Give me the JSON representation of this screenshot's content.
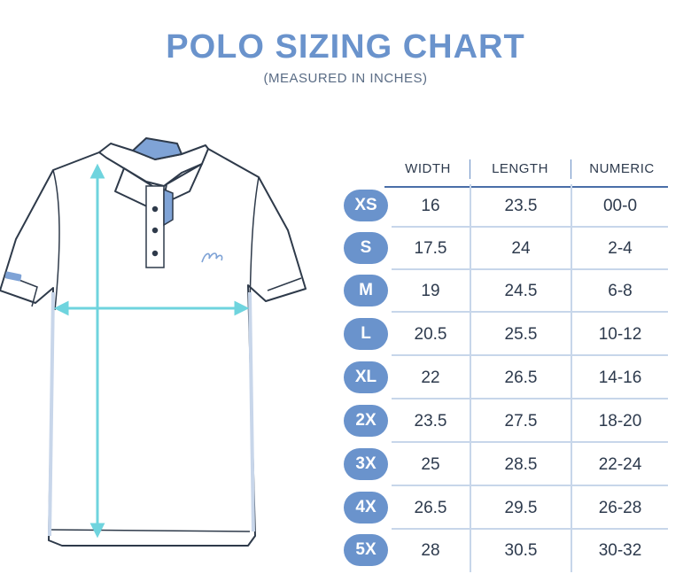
{
  "title": "POLO SIZING CHART",
  "subtitle": "(MEASURED IN INCHES)",
  "colors": {
    "accent": "#6a93cc",
    "text": "#2d3a4d",
    "measure_line": "#6fd4de"
  },
  "columns": [
    "WIDTH",
    "LENGTH",
    "NUMERIC"
  ],
  "rows": [
    {
      "size": "XS",
      "width": "16",
      "length": "23.5",
      "numeric": "00-0"
    },
    {
      "size": "S",
      "width": "17.5",
      "length": "24",
      "numeric": "2-4"
    },
    {
      "size": "M",
      "width": "19",
      "length": "24.5",
      "numeric": "6-8"
    },
    {
      "size": "L",
      "width": "20.5",
      "length": "25.5",
      "numeric": "10-12"
    },
    {
      "size": "XL",
      "width": "22",
      "length": "26.5",
      "numeric": "14-16"
    },
    {
      "size": "2X",
      "width": "23.5",
      "length": "27.5",
      "numeric": "18-20"
    },
    {
      "size": "3X",
      "width": "25",
      "length": "28.5",
      "numeric": "22-24"
    },
    {
      "size": "4X",
      "width": "26.5",
      "length": "29.5",
      "numeric": "26-28"
    },
    {
      "size": "5X",
      "width": "28",
      "length": "30.5",
      "numeric": "30-32"
    }
  ]
}
